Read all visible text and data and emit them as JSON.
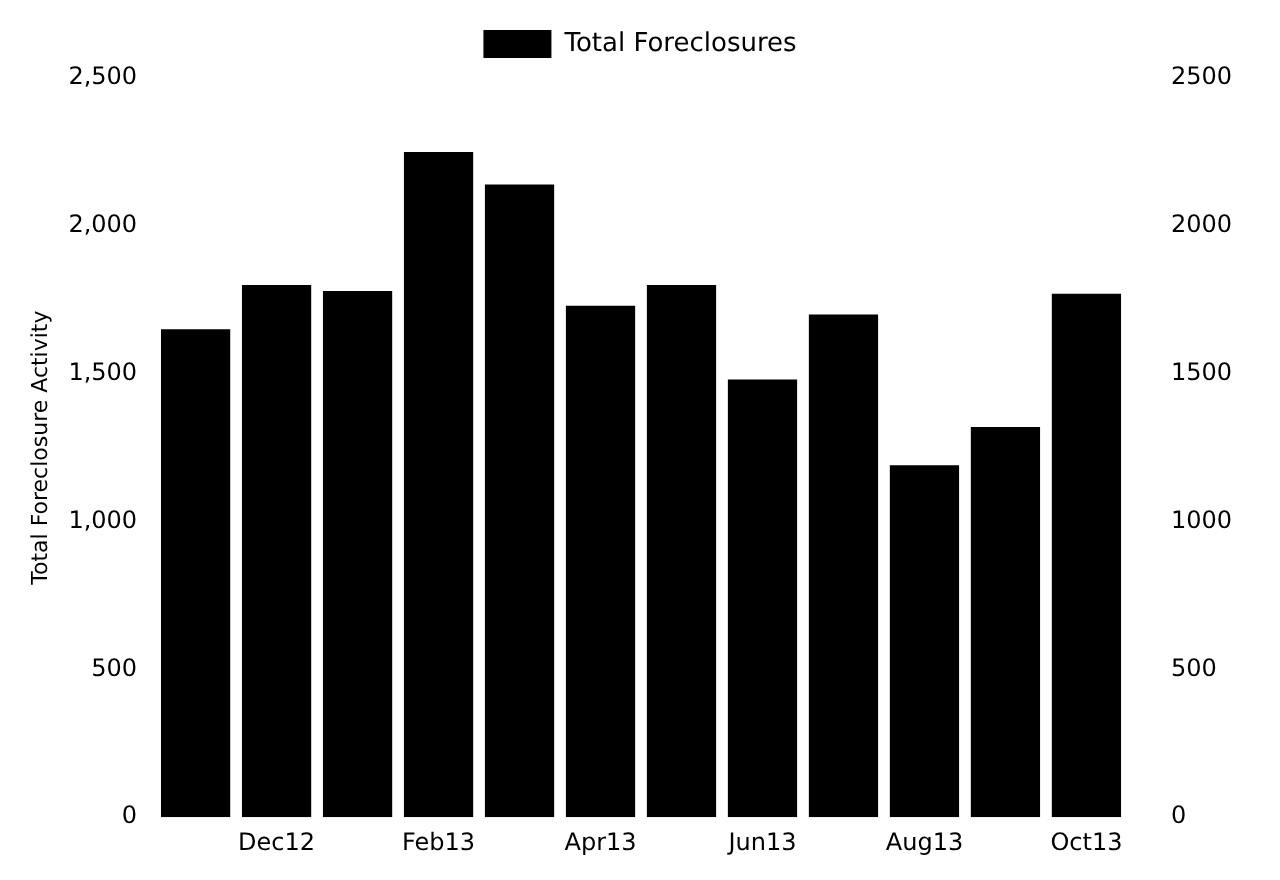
{
  "chart_data": {
    "type": "bar",
    "ylabel": "Total Foreclosure Activity",
    "categories": [
      null,
      "Dec12",
      null,
      "Feb13",
      null,
      "Apr13",
      null,
      "Jun13",
      null,
      "Aug13",
      null,
      "Oct13"
    ],
    "series": [
      {
        "name": "Total Foreclosures",
        "color": "#000000",
        "values": [
          1650,
          1800,
          1780,
          2250,
          2140,
          1730,
          1800,
          1480,
          1700,
          1190,
          1320,
          1770
        ]
      }
    ],
    "ylim": [
      0,
      2500
    ],
    "yticks": [
      {
        "value": 0,
        "label": "0"
      },
      {
        "value": 500,
        "label": "500"
      },
      {
        "value": 1000,
        "label": "1,000"
      },
      {
        "value": 1500,
        "label": "1,500"
      },
      {
        "value": 2000,
        "label": "2,000"
      },
      {
        "value": 2500,
        "label": "2,500"
      }
    ],
    "y2lim": [
      0,
      2500
    ],
    "y2ticks": [
      0,
      500,
      1000,
      1500,
      2000,
      2500
    ],
    "grid": false,
    "legend": "top"
  }
}
